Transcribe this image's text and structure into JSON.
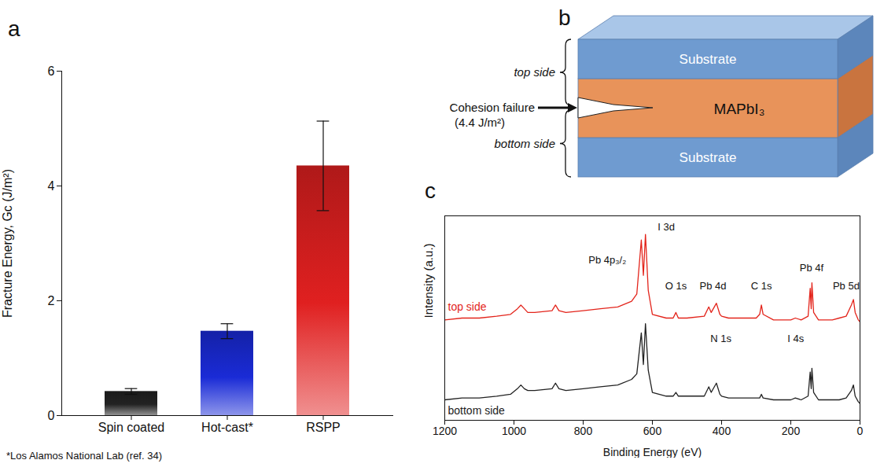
{
  "chart_data": [
    {
      "panel": "a",
      "type": "bar",
      "categories": [
        "Spin coated",
        "Hot-cast*",
        "RSPP"
      ],
      "values": [
        0.42,
        1.47,
        4.35
      ],
      "errors": [
        0.05,
        0.13,
        0.78
      ],
      "colors": [
        "#222222",
        "#1a2bd6",
        "#e02020"
      ],
      "ylabel": "Fracture Energy, Gc (J/m²)",
      "ylim": [
        0,
        6
      ],
      "yticks": [
        0,
        2,
        4,
        6
      ],
      "footnote": "*Los Alamos National Lab (ref. 34)"
    },
    {
      "panel": "c",
      "type": "line",
      "xlabel": "Binding Energy (eV)",
      "ylabel": "Intensity (a.u.)",
      "xlim": [
        1200,
        0
      ],
      "xticks": [
        1200,
        1000,
        800,
        600,
        400,
        200,
        0
      ],
      "ylim": [
        0,
        110
      ],
      "tick_labels": "x",
      "x": [
        1200,
        1150,
        1100,
        1050,
        1010,
        990,
        980,
        970,
        960,
        940,
        890,
        880,
        870,
        850,
        800,
        750,
        700,
        660,
        645,
        632,
        626,
        620,
        612,
        600,
        560,
        540,
        532,
        525,
        500,
        450,
        437,
        430,
        415,
        405,
        400,
        380,
        300,
        290,
        285,
        280,
        250,
        200,
        187,
        170,
        150,
        144,
        141,
        139,
        134,
        120,
        80,
        60,
        40,
        25,
        19,
        14,
        5,
        0
      ],
      "series": [
        {
          "name": "top side",
          "color": "#e3241b",
          "values": [
            54,
            55,
            55,
            56,
            57,
            60,
            62,
            60,
            58,
            58,
            59,
            62,
            59,
            58,
            59,
            60,
            61,
            64,
            68,
            97,
            78,
            100,
            70,
            57,
            55,
            55,
            58,
            55,
            55,
            56,
            61,
            58,
            63,
            57,
            56,
            55,
            55,
            57,
            62,
            57,
            54,
            54,
            55,
            54,
            56,
            71,
            60,
            74,
            58,
            54,
            54,
            55,
            56,
            62,
            65,
            58,
            54,
            53
          ]
        },
        {
          "name": "bottom side",
          "color": "#222222",
          "values": [
            11,
            12,
            12,
            13,
            14,
            17,
            19,
            17,
            16,
            16,
            17,
            20,
            17,
            16,
            17,
            18,
            19,
            22,
            25,
            47,
            30,
            52,
            27,
            15,
            13,
            13,
            15,
            13,
            13,
            13,
            18,
            15,
            20,
            14,
            13,
            12,
            12,
            12,
            14,
            12,
            11,
            11,
            12,
            11,
            13,
            26,
            17,
            28,
            15,
            11,
            11,
            11,
            12,
            16,
            19,
            13,
            10,
            9
          ]
        }
      ],
      "annotations": [
        {
          "text": "I 3d",
          "x": 560,
          "y": 104
        },
        {
          "text": "Pb 4p₃/₂",
          "x": 730,
          "y": 86
        },
        {
          "text": "O 1s",
          "x": 532,
          "y": 72
        },
        {
          "text": "Pb 4d",
          "x": 425,
          "y": 72
        },
        {
          "text": "C 1s",
          "x": 285,
          "y": 72
        },
        {
          "text": "N 1s",
          "x": 402,
          "y": 44
        },
        {
          "text": "I 4s",
          "x": 186,
          "y": 44
        },
        {
          "text": "Pb 4f",
          "x": 140,
          "y": 82
        },
        {
          "text": "Pb 5d",
          "x": 40,
          "y": 72
        }
      ]
    }
  ],
  "diagram": {
    "panel": "b",
    "top_substrate": "Substrate",
    "film": "MAPbI₃",
    "bottom_substrate": "Substrate",
    "top_label": "top side",
    "bottom_label": "bottom side",
    "arrow_label": [
      "Cohesion failure",
      "(4.4 J/m²)"
    ]
  }
}
